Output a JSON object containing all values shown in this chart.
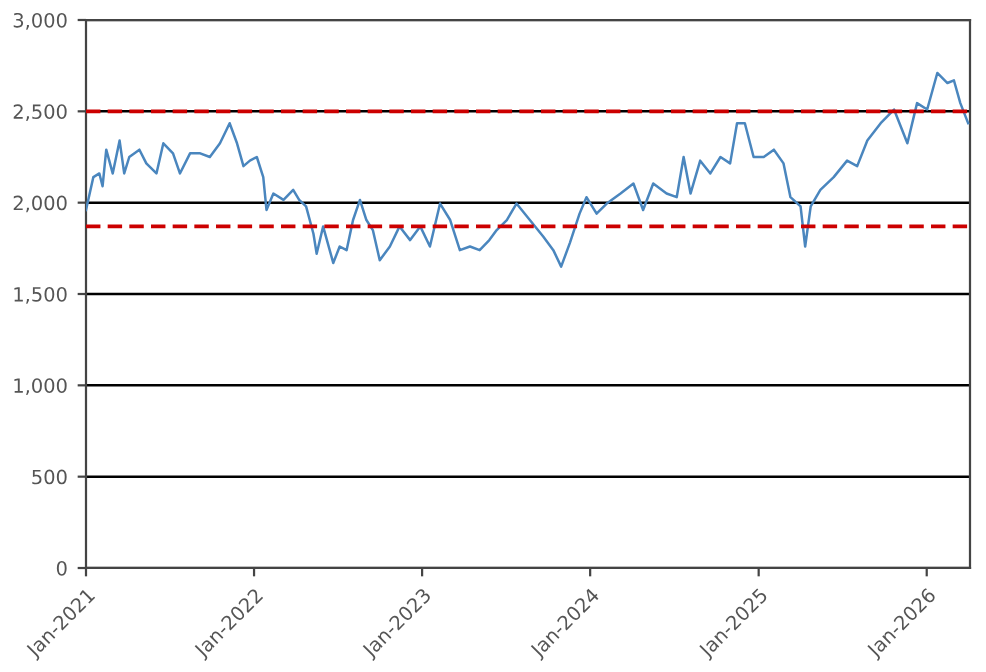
{
  "chart_data": {
    "type": "line",
    "x": [
      "2021-01-01",
      "2021-01-17",
      "2021-01-30",
      "2021-02-06",
      "2021-02-14",
      "2021-02-28",
      "2021-03-15",
      "2021-03-25",
      "2021-04-05",
      "2021-04-27",
      "2021-05-12",
      "2021-06-03",
      "2021-06-18",
      "2021-07-09",
      "2021-07-24",
      "2021-08-15",
      "2021-09-06",
      "2021-09-27",
      "2021-10-19",
      "2021-11-09",
      "2021-11-25",
      "2021-12-09",
      "2021-12-23",
      "2022-01-07",
      "2022-01-21",
      "2022-01-28",
      "2022-02-12",
      "2022-03-06",
      "2022-03-27",
      "2022-04-09",
      "2022-04-24",
      "2022-05-10",
      "2022-05-17",
      "2022-05-31",
      "2022-06-22",
      "2022-07-06",
      "2022-07-21",
      "2022-08-04",
      "2022-08-19",
      "2022-09-02",
      "2022-09-16",
      "2022-10-01",
      "2022-10-23",
      "2022-11-13",
      "2022-12-06",
      "2022-12-28",
      "2023-01-18",
      "2023-02-09",
      "2023-03-03",
      "2023-03-24",
      "2023-04-15",
      "2023-05-06",
      "2023-05-27",
      "2023-06-12",
      "2023-07-04",
      "2023-07-25",
      "2023-08-23",
      "2023-09-21",
      "2023-10-13",
      "2023-10-30",
      "2023-11-18",
      "2023-12-09",
      "2023-12-24",
      "2024-01-15",
      "2024-02-06",
      "2024-03-07",
      "2024-04-04",
      "2024-04-25",
      "2024-05-17",
      "2024-06-15",
      "2024-07-07",
      "2024-07-22",
      "2024-08-06",
      "2024-08-27",
      "2024-09-18",
      "2024-10-10",
      "2024-10-31",
      "2024-11-15",
      "2024-12-02",
      "2024-12-21",
      "2025-01-12",
      "2025-02-03",
      "2025-02-24",
      "2025-03-11",
      "2025-04-02",
      "2025-04-12",
      "2025-04-24",
      "2025-05-15",
      "2025-06-13",
      "2025-07-12",
      "2025-08-03",
      "2025-08-25",
      "2025-09-23",
      "2025-10-22",
      "2025-11-20",
      "2025-12-11",
      "2026-01-02",
      "2026-01-24",
      "2026-02-15",
      "2026-03-01",
      "2026-03-15",
      "2026-04-01"
    ],
    "series": [
      {
        "color": "#4a86be",
        "values": [
          1960,
          2140,
          2160,
          2090,
          2290,
          2160,
          2340,
          2160,
          2250,
          2290,
          2215,
          2160,
          2325,
          2270,
          2160,
          2270,
          2270,
          2250,
          2325,
          2435,
          2325,
          2200,
          2230,
          2250,
          2140,
          1960,
          2050,
          2015,
          2070,
          2015,
          1980,
          1830,
          1720,
          1870,
          1670,
          1760,
          1740,
          1905,
          2015,
          1905,
          1850,
          1685,
          1760,
          1870,
          1795,
          1870,
          1760,
          1995,
          1905,
          1740,
          1760,
          1740,
          1795,
          1850,
          1905,
          1995,
          1905,
          1815,
          1740,
          1650,
          1780,
          1940,
          2030,
          1940,
          1995,
          2050,
          2105,
          1960,
          2105,
          2050,
          2030,
          2250,
          2050,
          2230,
          2160,
          2250,
          2215,
          2435,
          2435,
          2250,
          2250,
          2290,
          2215,
          2030,
          1980,
          1760,
          1980,
          2070,
          2140,
          2230,
          2200,
          2340,
          2435,
          2510,
          2325,
          2545,
          2510,
          2710,
          2655,
          2670,
          2545,
          2435
        ]
      }
    ],
    "xlim": [
      "2021-01-01",
      "2026-04-05"
    ],
    "xticks": [
      {
        "value": "2021-01-01",
        "label": "Jan-2021"
      },
      {
        "value": "2022-01-01",
        "label": "Jan-2022"
      },
      {
        "value": "2023-01-01",
        "label": "Jan-2023"
      },
      {
        "value": "2024-01-01",
        "label": "Jan-2024"
      },
      {
        "value": "2025-01-01",
        "label": "Jan-2025"
      },
      {
        "value": "2026-01-01",
        "label": "Jan-2026"
      }
    ],
    "ylim": [
      0,
      3000
    ],
    "yticks": [
      0,
      500,
      {
        "value": 1000,
        "label": "1,000"
      },
      {
        "value": 1500,
        "label": "1,500"
      },
      {
        "value": 2000,
        "label": "2,000"
      },
      {
        "value": 2500,
        "label": "2,500"
      },
      {
        "value": 3000,
        "label": "3,000"
      }
    ],
    "grid": "y",
    "ref_lines": [
      {
        "axis": "y",
        "value": 2500,
        "color": "#cc0000",
        "line_style": "dashed"
      },
      {
        "axis": "y",
        "value": 1870,
        "color": "#cc0000",
        "line_style": "dashed"
      }
    ]
  }
}
